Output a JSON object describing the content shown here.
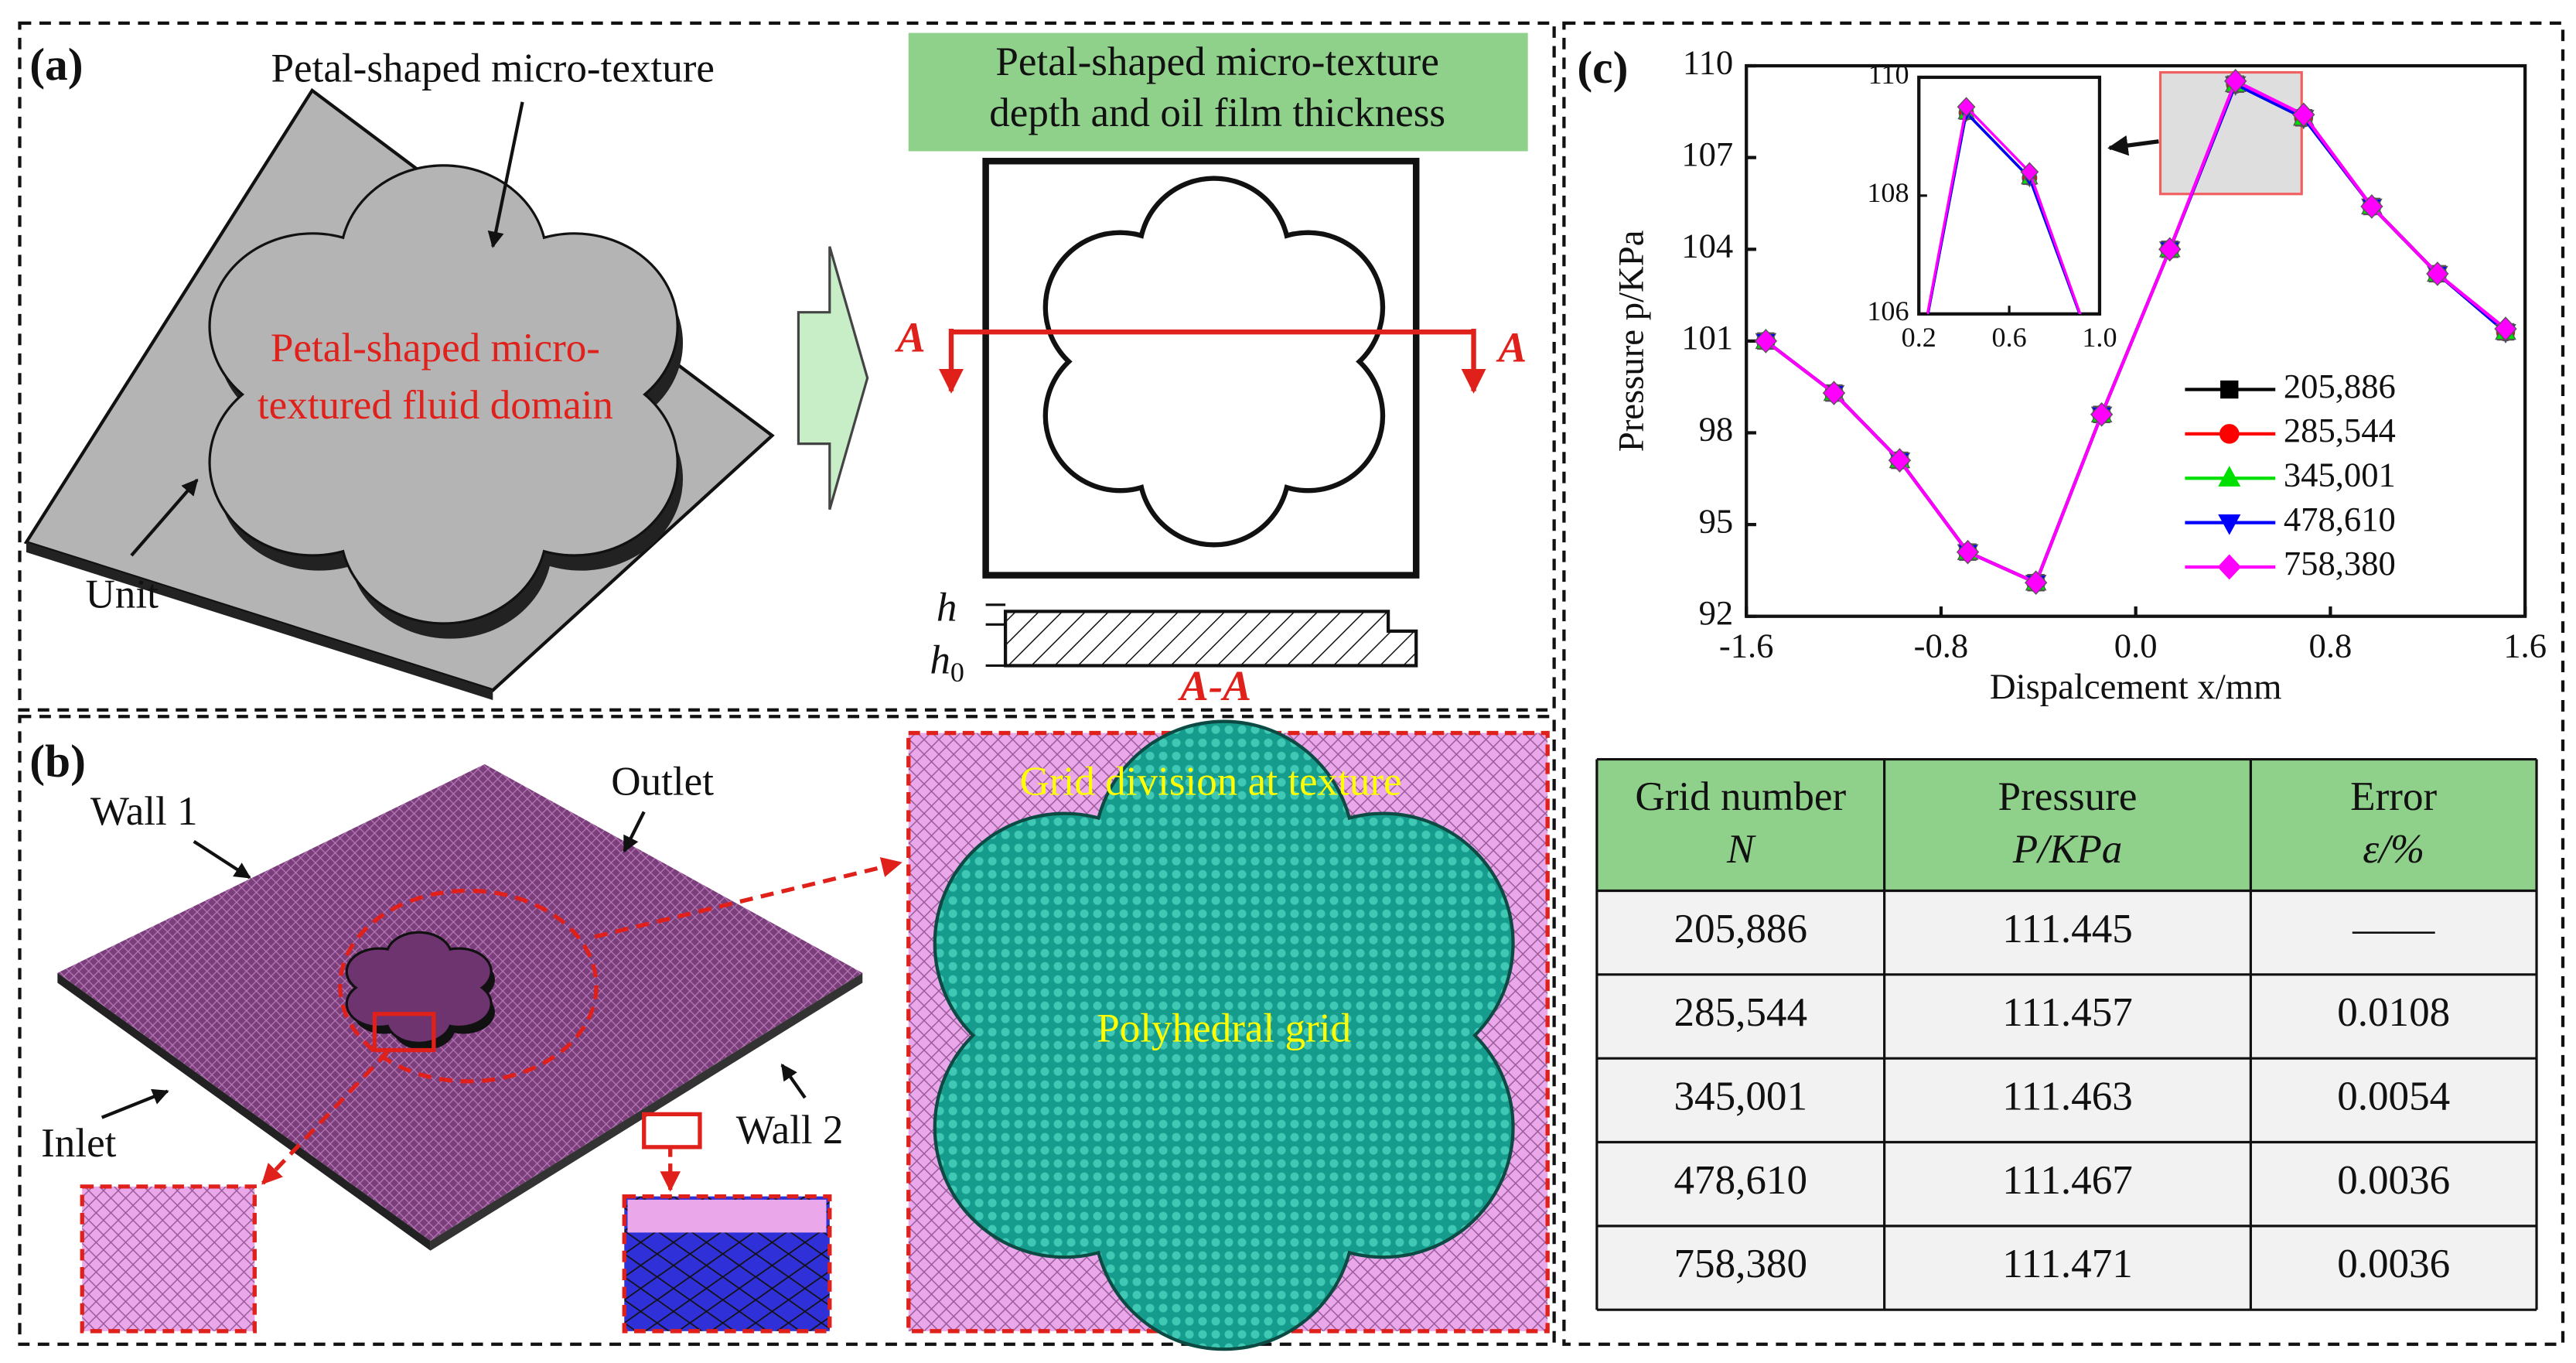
{
  "panel_a": {
    "tag": "(a)",
    "texture_label": "Petal-shaped micro-texture",
    "domain_label": [
      "Petal-shaped micro-",
      "textured fluid domain"
    ],
    "unit_label": "Unit",
    "box_title": [
      "Petal-shaped micro-texture",
      "depth and oil film thickness"
    ],
    "section_mark": "A",
    "h_label": "h",
    "h0_label": "h",
    "h0_sub": "0",
    "section_label": "A-A"
  },
  "panel_b": {
    "tag": "(b)",
    "wall1": "Wall 1",
    "outlet": "Outlet",
    "inlet": "Inlet",
    "wall2": "Wall 2",
    "grid_title": "Grid division at texture",
    "grid_label": "Polyhedral grid"
  },
  "panel_c": {
    "tag": "(c)"
  },
  "chart_data": {
    "type": "line",
    "xlabel": "Dispalcement x/mm",
    "ylabel": "Pressure p/KPa",
    "x": [
      -1.52,
      -1.24,
      -0.97,
      -0.69,
      -0.41,
      -0.14,
      0.14,
      0.41,
      0.69,
      0.97,
      1.24,
      1.52
    ],
    "series": [
      {
        "name": "205,886",
        "color": "#000000",
        "marker": "square",
        "values": [
          101.0,
          99.3,
          97.1,
          94.1,
          93.1,
          98.6,
          104.0,
          109.4,
          108.3,
          105.4,
          103.2,
          101.3
        ]
      },
      {
        "name": "285,544",
        "color": "#ff0000",
        "marker": "circle",
        "values": [
          101.0,
          99.3,
          97.1,
          94.1,
          93.1,
          98.6,
          104.0,
          109.4,
          108.3,
          105.4,
          103.2,
          101.3
        ]
      },
      {
        "name": "345,001",
        "color": "#00e000",
        "marker": "triangle-up",
        "values": [
          101.0,
          99.3,
          97.1,
          94.1,
          93.1,
          98.6,
          104.0,
          109.4,
          108.3,
          105.4,
          103.2,
          101.3
        ]
      },
      {
        "name": "478,610",
        "color": "#0000ff",
        "marker": "triangle-down",
        "values": [
          101.0,
          99.3,
          97.1,
          94.1,
          93.1,
          98.6,
          104.0,
          109.4,
          108.3,
          105.4,
          103.2,
          101.3
        ]
      },
      {
        "name": "758,380",
        "color": "#ff00ff",
        "marker": "diamond",
        "values": [
          101.0,
          99.3,
          97.1,
          94.1,
          93.1,
          98.6,
          104.0,
          109.5,
          108.4,
          105.4,
          103.2,
          101.4
        ]
      }
    ],
    "xlim": [
      -1.6,
      1.6
    ],
    "xticks": [
      -1.6,
      -0.8,
      {
        "value": 0,
        "label": "0.0"
      },
      0.8,
      1.6
    ],
    "ylim": [
      92,
      110
    ],
    "yticks": [
      92,
      95,
      98,
      101,
      104,
      107,
      110
    ],
    "inset": {
      "xlim": [
        0.2,
        1.0
      ],
      "xticks": [
        0.2,
        0.6,
        {
          "value": 1.0,
          "label": "1.0"
        }
      ],
      "ylim": [
        106,
        110
      ],
      "yticks": [
        106,
        108,
        110
      ]
    }
  },
  "table": {
    "header": [
      [
        "Grid number",
        "N"
      ],
      [
        "Pressure",
        "P/KPa"
      ],
      [
        "Error",
        "ε/%"
      ]
    ],
    "rows": [
      [
        "205,886",
        "111.445",
        "——"
      ],
      [
        "285,544",
        "111.457",
        "0.0108"
      ],
      [
        "345,001",
        "111.463",
        "0.0054"
      ],
      [
        "478,610",
        "111.467",
        "0.0036"
      ],
      [
        "758,380",
        "111.471",
        "0.0036"
      ]
    ]
  }
}
